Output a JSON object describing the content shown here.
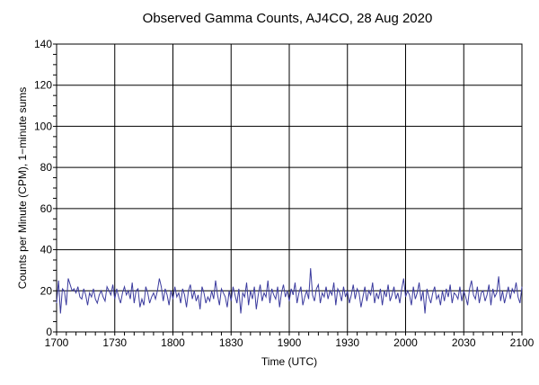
{
  "colors": {
    "background": "#ffffff",
    "line": "#3b3b9e",
    "grid": "#000000"
  },
  "chart_data": {
    "type": "line",
    "title": "Observed Gamma Counts, AJ4CO, 28 Aug 2020",
    "xlabel": "Time (UTC)",
    "ylabel": "Counts per Minute (CPM), 1−minute sums",
    "xlim": [
      0,
      240
    ],
    "ylim": [
      0,
      140
    ],
    "grid": true,
    "x_ticks": [
      {
        "value": 0,
        "label": "1700"
      },
      {
        "value": 30,
        "label": "1730"
      },
      {
        "value": 60,
        "label": "1800"
      },
      {
        "value": 90,
        "label": "1830"
      },
      {
        "value": 120,
        "label": "1900"
      },
      {
        "value": 150,
        "label": "1930"
      },
      {
        "value": 180,
        "label": "2000"
      },
      {
        "value": 210,
        "label": "2030"
      },
      {
        "value": 240,
        "label": "2100"
      }
    ],
    "y_ticks": [
      {
        "value": 0,
        "label": "0"
      },
      {
        "value": 20,
        "label": "20"
      },
      {
        "value": 40,
        "label": "40"
      },
      {
        "value": 60,
        "label": "60"
      },
      {
        "value": 80,
        "label": "80"
      },
      {
        "value": 100,
        "label": "100"
      },
      {
        "value": 120,
        "label": "120"
      },
      {
        "value": 140,
        "label": "140"
      }
    ],
    "series": [
      {
        "values": [
          14,
          25,
          9,
          21,
          20,
          13,
          26,
          23,
          20,
          21,
          19,
          22,
          17,
          16,
          21,
          18,
          13,
          19,
          17,
          21,
          16,
          14,
          18,
          20,
          17,
          15,
          22,
          20,
          18,
          23,
          16,
          21,
          17,
          14,
          19,
          22,
          18,
          20,
          16,
          24,
          14,
          20,
          21,
          12,
          16,
          13,
          22,
          19,
          14,
          17,
          19,
          16,
          20,
          26,
          22,
          15,
          21,
          18,
          13,
          20,
          16,
          22,
          17,
          19,
          14,
          21,
          18,
          12,
          20,
          23,
          16,
          20,
          15,
          18,
          11,
          22,
          19,
          14,
          17,
          15,
          20,
          16,
          25,
          18,
          13,
          21,
          19,
          17,
          12,
          20,
          15,
          22,
          18,
          14,
          21,
          9,
          19,
          17,
          24,
          13,
          20,
          16,
          22,
          11,
          18,
          23,
          15,
          19,
          17,
          25,
          14,
          21,
          18,
          16,
          22,
          12,
          19,
          23,
          17,
          20,
          15,
          21,
          18,
          24,
          14,
          19,
          22,
          13,
          17,
          20,
          16,
          31,
          18,
          15,
          21,
          23,
          14,
          19,
          17,
          22,
          16,
          20,
          18,
          24,
          13,
          21,
          19,
          15,
          22,
          17,
          20,
          14,
          18,
          23,
          16,
          21,
          19,
          12,
          17,
          22,
          15,
          20,
          18,
          24,
          14,
          19,
          16,
          21,
          13,
          20,
          17,
          23,
          15,
          18,
          22,
          16,
          19,
          14,
          21,
          26,
          17,
          20,
          18,
          13,
          22,
          16,
          19,
          24,
          15,
          20,
          9,
          21,
          17,
          14,
          19,
          22,
          16,
          18,
          13,
          20,
          15,
          21,
          17,
          23,
          14,
          19,
          18,
          16,
          22,
          15,
          20,
          17,
          13,
          21,
          25,
          18,
          16,
          22,
          14,
          19,
          20,
          15,
          18,
          23,
          13,
          21,
          17,
          19,
          27,
          15,
          20,
          14,
          18,
          22,
          16,
          21,
          19,
          24,
          17,
          14,
          22
        ]
      }
    ]
  }
}
